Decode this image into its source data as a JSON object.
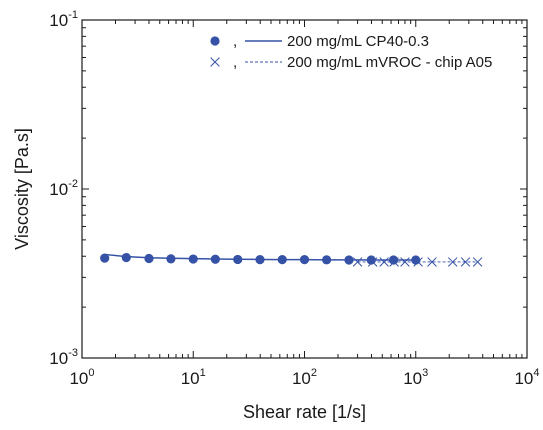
{
  "chart_data": {
    "type": "scatter",
    "xlabel": "Shear rate [1/s]",
    "ylabel": "Viscosity [Pa.s]",
    "xscale": "log",
    "yscale": "log",
    "xlim": [
      1,
      10000
    ],
    "ylim": [
      0.001,
      0.1
    ],
    "grid": false,
    "legend_position": "top-right",
    "x_ticks": [
      {
        "value": 1,
        "base": "10",
        "exp": "0"
      },
      {
        "value": 10,
        "base": "10",
        "exp": "1"
      },
      {
        "value": 100,
        "base": "10",
        "exp": "2"
      },
      {
        "value": 1000,
        "base": "10",
        "exp": "3"
      },
      {
        "value": 10000,
        "base": "10",
        "exp": "4"
      }
    ],
    "y_ticks": [
      {
        "value": 0.001,
        "base": "10",
        "exp": "-3"
      },
      {
        "value": 0.01,
        "base": "10",
        "exp": "-2"
      },
      {
        "value": 0.1,
        "base": "10",
        "exp": "-1"
      }
    ],
    "series": [
      {
        "name": "200 mg/mL CP40-0.3",
        "marker": "circle",
        "line_style": "solid",
        "color": "#3552a6",
        "x": [
          1.6,
          2.5,
          4.0,
          6.3,
          10.0,
          15.8,
          25.1,
          39.8,
          63.1,
          100.0,
          158.0,
          251.0,
          398.0,
          631.0,
          1000.0
        ],
        "y": [
          0.0039,
          0.00393,
          0.00388,
          0.00386,
          0.00385,
          0.00384,
          0.00383,
          0.00382,
          0.00382,
          0.00382,
          0.00381,
          0.0038,
          0.0038,
          0.0038,
          0.0038
        ],
        "line_y": [
          0.0041,
          0.00398,
          0.00392,
          0.00389,
          0.00387,
          0.00385,
          0.00384,
          0.00383,
          0.00382,
          0.00382,
          0.00381,
          0.00381,
          0.0038,
          0.0038,
          0.0038
        ]
      },
      {
        "name": "200 mg/mL mVROC - chip A05",
        "marker": "x",
        "line_style": "dashed",
        "color": "#3552a6",
        "x": [
          300,
          410,
          520,
          640,
          800,
          1050,
          1400,
          2150,
          2800,
          3600
        ],
        "y": [
          0.0037,
          0.0037,
          0.0037,
          0.0037,
          0.0037,
          0.0037,
          0.0037,
          0.0037,
          0.0037,
          0.0037
        ]
      }
    ],
    "legend": [
      {
        "separator": ","
      },
      {
        "separator": ","
      }
    ]
  }
}
